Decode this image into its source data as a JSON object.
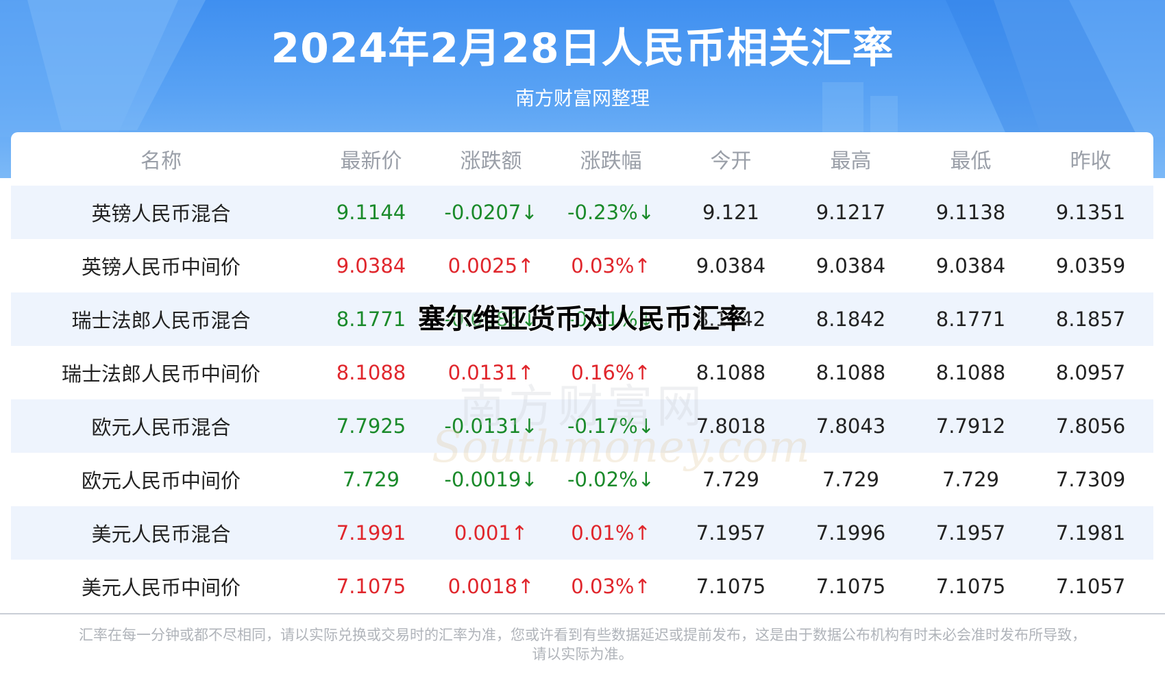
{
  "header": {
    "title": "2024年2月28日人民币相关汇率",
    "subtitle": "南方财富网整理"
  },
  "colors": {
    "header_blue": "#4a97f2",
    "up": "#e0262c",
    "down": "#1a8a2a",
    "row_alt": "#eef4fd"
  },
  "table": {
    "columns": [
      "名称",
      "最新价",
      "涨跌额",
      "涨跌幅",
      "今开",
      "最高",
      "最低",
      "昨收"
    ],
    "rows": [
      {
        "name": "英镑人民币混合",
        "latest": "9.1144",
        "change": "-0.0207↓",
        "pct": "-0.23%↓",
        "open": "9.121",
        "high": "9.1217",
        "low": "9.1138",
        "prev": "9.1351",
        "trend": "down"
      },
      {
        "name": "英镑人民币中间价",
        "latest": "9.0384",
        "change": "0.0025↑",
        "pct": "0.03%↑",
        "open": "9.0384",
        "high": "9.0384",
        "low": "9.0384",
        "prev": "9.0359",
        "trend": "up"
      },
      {
        "name": "瑞士法郎人民币混合",
        "latest": "8.1771",
        "change": "-0.0086↓",
        "pct": "-0.11%↓",
        "open": "8.1842",
        "high": "8.1842",
        "low": "8.1771",
        "prev": "8.1857",
        "trend": "down"
      },
      {
        "name": "瑞士法郎人民币中间价",
        "latest": "8.1088",
        "change": "0.0131↑",
        "pct": "0.16%↑",
        "open": "8.1088",
        "high": "8.1088",
        "low": "8.1088",
        "prev": "8.0957",
        "trend": "up"
      },
      {
        "name": "欧元人民币混合",
        "latest": "7.7925",
        "change": "-0.0131↓",
        "pct": "-0.17%↓",
        "open": "7.8018",
        "high": "7.8043",
        "low": "7.7912",
        "prev": "7.8056",
        "trend": "down"
      },
      {
        "name": "欧元人民币中间价",
        "latest": "7.729",
        "change": "-0.0019↓",
        "pct": "-0.02%↓",
        "open": "7.729",
        "high": "7.729",
        "low": "7.729",
        "prev": "7.7309",
        "trend": "down"
      },
      {
        "name": "美元人民币混合",
        "latest": "7.1991",
        "change": "0.001↑",
        "pct": "0.01%↑",
        "open": "7.1957",
        "high": "7.1996",
        "low": "7.1957",
        "prev": "7.1981",
        "trend": "up"
      },
      {
        "name": "美元人民币中间价",
        "latest": "7.1075",
        "change": "0.0018↑",
        "pct": "0.03%↑",
        "open": "7.1075",
        "high": "7.1075",
        "low": "7.1075",
        "prev": "7.1057",
        "trend": "up"
      }
    ]
  },
  "overlay_text": "塞尔维亚货币对人民币汇率",
  "watermark": {
    "cn": "南方财富网",
    "en": "Southmoney.com"
  },
  "footnote": {
    "line1": "汇率在每一分钟或都不尽相同，请以实际兑换或交易时的汇率为准，您或许看到有些数据延迟或提前发布，这是由于数据公布机构有时未必会准时发布所导致，",
    "line2": "请以实际为准。"
  }
}
